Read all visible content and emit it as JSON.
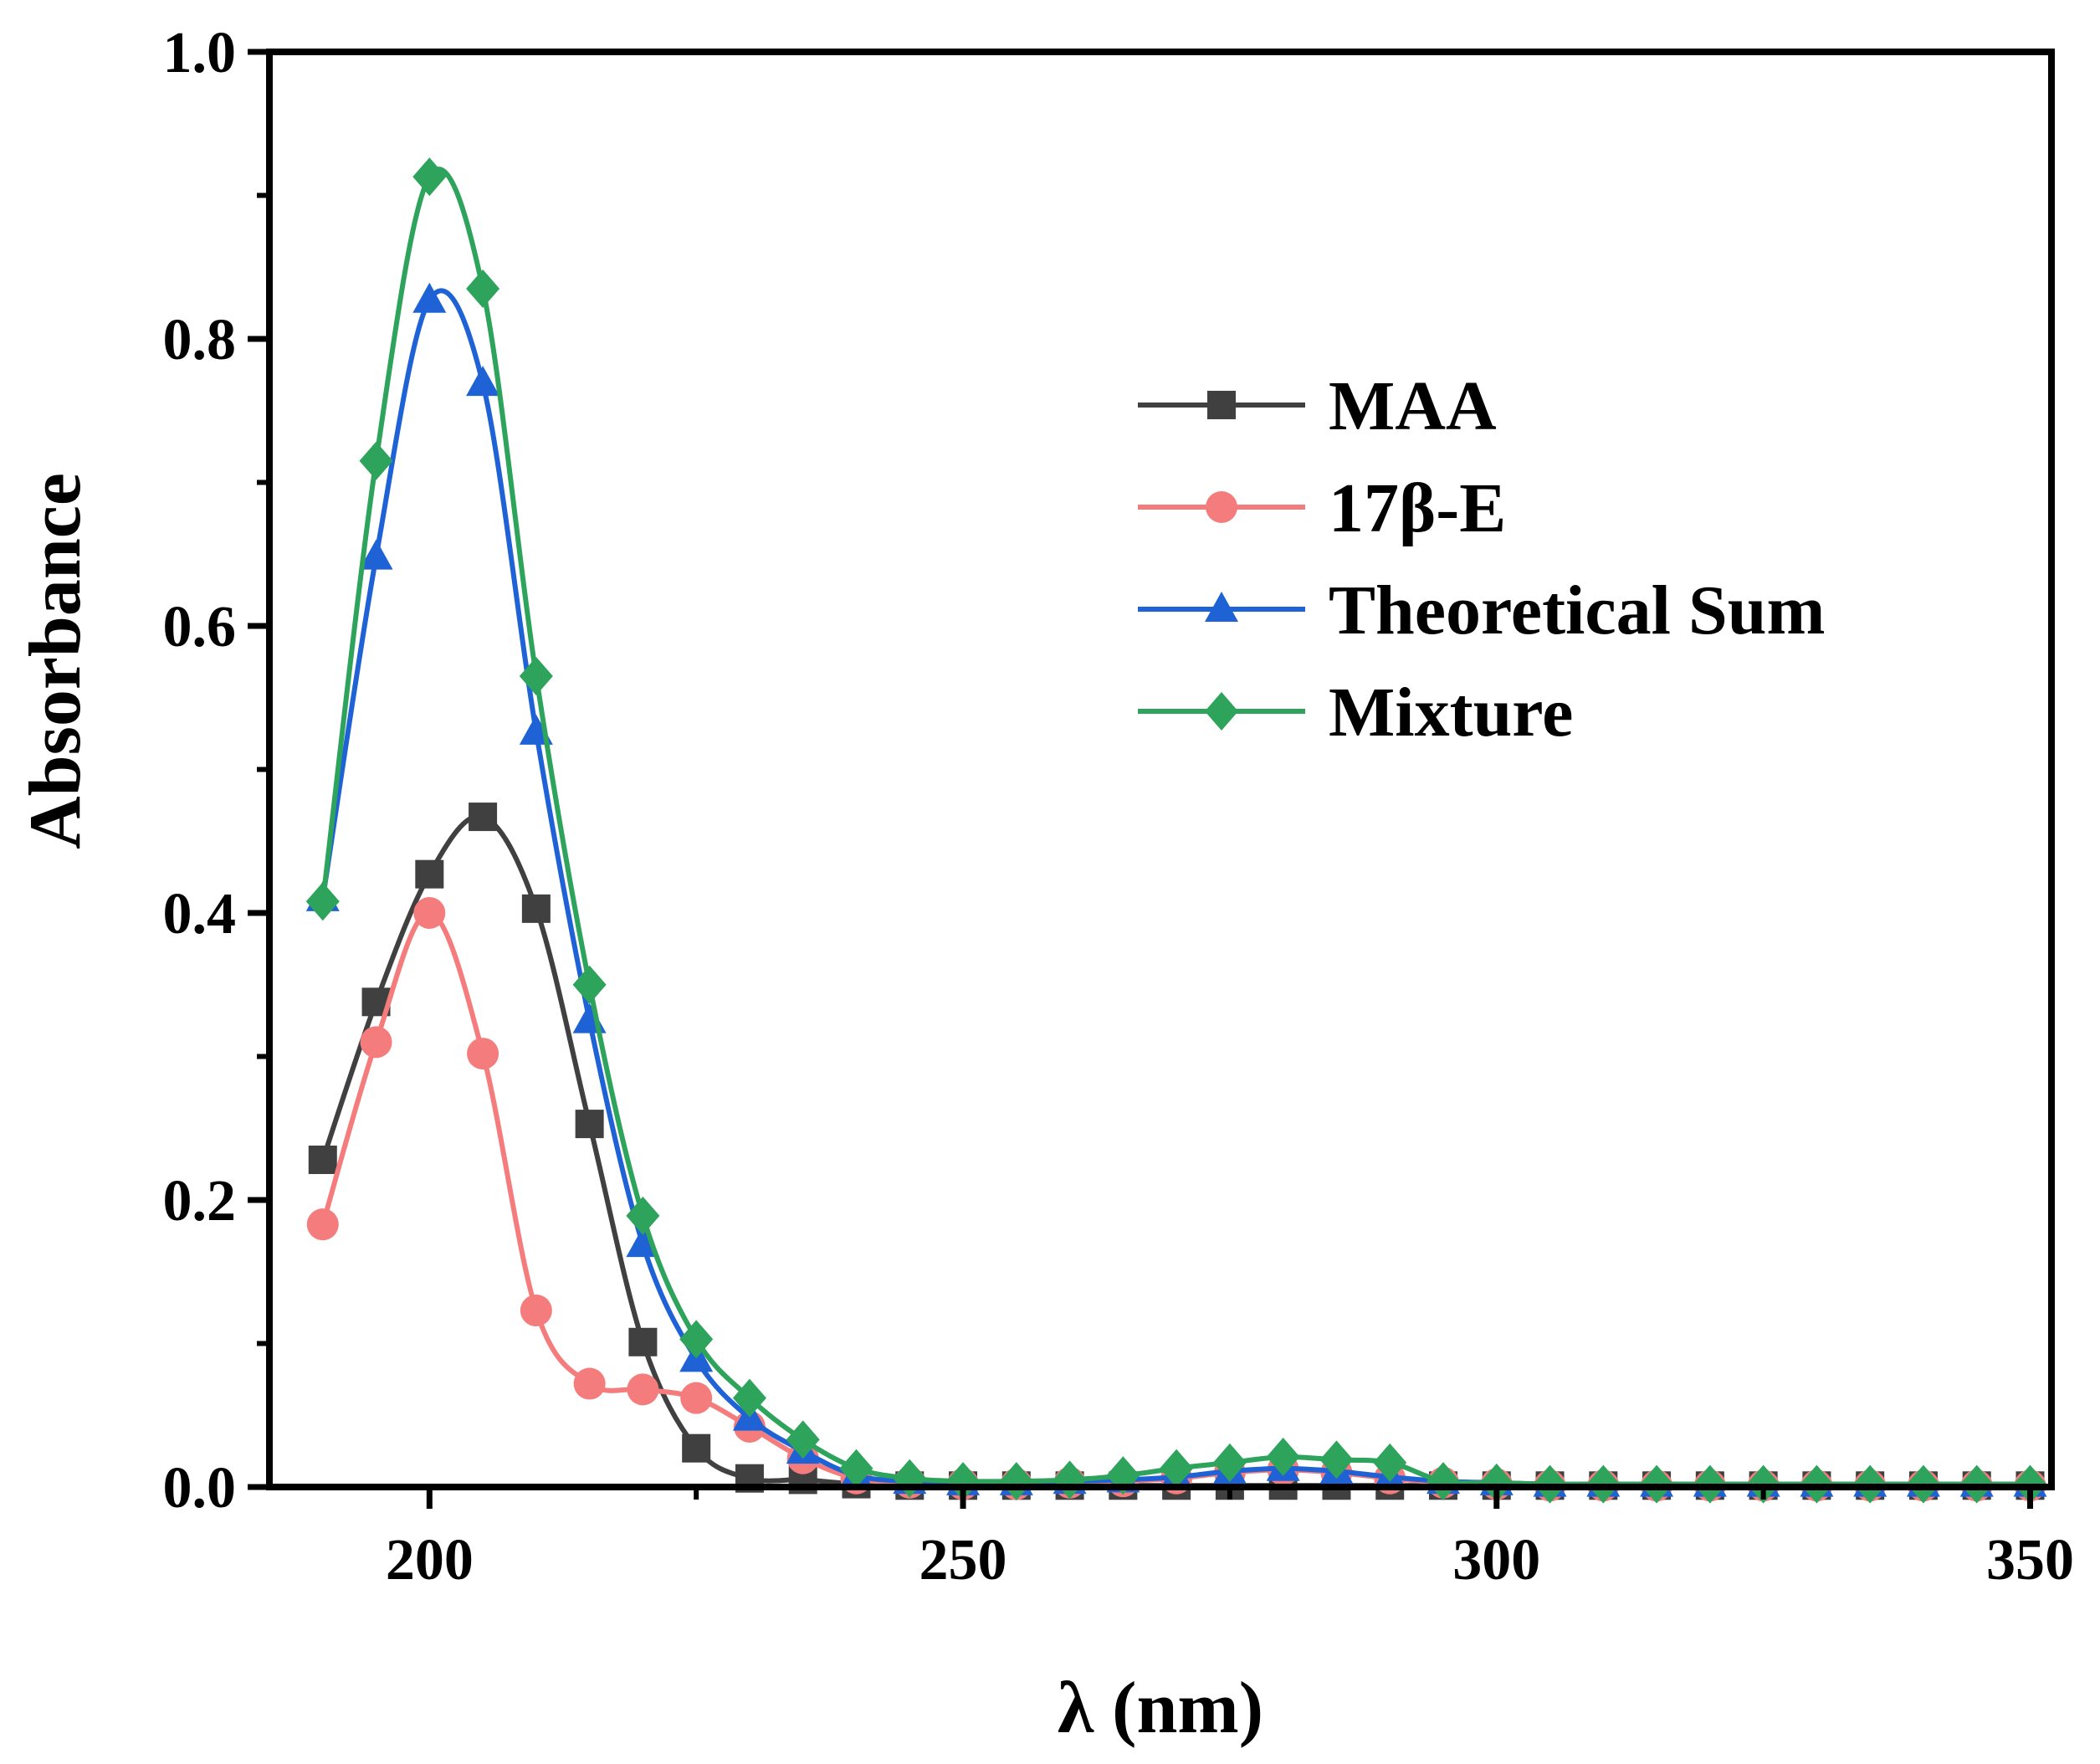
{
  "chart_data": {
    "type": "line",
    "title": "",
    "xlabel": "λ (nm)",
    "ylabel": "Absorbance",
    "xlim": [
      185,
      352
    ],
    "ylim": [
      0,
      1.0
    ],
    "xticks": [
      200,
      250,
      300,
      350
    ],
    "xtick_labels": [
      "200",
      "250",
      "300",
      "350"
    ],
    "yticks": [
      0.0,
      0.2,
      0.4,
      0.6,
      0.8,
      1.0
    ],
    "ytick_labels": [
      "0.0",
      "0.2",
      "0.4",
      "0.6",
      "0.8",
      "1.0"
    ],
    "x_minor_ticks": [
      225,
      275,
      325
    ],
    "y_minor_ticks": [
      0.1,
      0.3,
      0.5,
      0.7,
      0.9
    ],
    "grid": false,
    "legend_position": "top-right",
    "series": [
      {
        "name": "MAA",
        "color": "#404040",
        "marker": "square",
        "x": [
          190,
          195,
          200,
          205,
          210,
          215,
          220,
          225,
          230,
          235,
          240,
          245,
          250,
          255,
          260,
          265,
          270,
          275,
          280,
          285,
          290,
          295,
          300,
          305,
          310,
          315,
          320,
          325,
          330,
          335,
          340,
          345,
          350
        ],
        "y": [
          0.228,
          0.338,
          0.427,
          0.467,
          0.403,
          0.253,
          0.101,
          0.027,
          0.006,
          0.005,
          0.002,
          0.001,
          0.001,
          0.001,
          0.001,
          0.001,
          0.001,
          0.001,
          0.001,
          0.001,
          0.001,
          0.001,
          0.001,
          0.001,
          0.001,
          0.001,
          0.001,
          0.001,
          0.001,
          0.001,
          0.001,
          0.001,
          0.001
        ]
      },
      {
        "name": "17β-E",
        "color": "#f57c7c",
        "marker": "circle",
        "x": [
          190,
          195,
          200,
          205,
          210,
          215,
          220,
          225,
          230,
          235,
          240,
          245,
          250,
          255,
          260,
          265,
          270,
          275,
          280,
          285,
          290,
          295,
          300,
          305,
          310,
          315,
          320,
          325,
          330,
          335,
          340,
          345,
          350
        ],
        "y": [
          0.183,
          0.31,
          0.4,
          0.302,
          0.123,
          0.072,
          0.068,
          0.062,
          0.042,
          0.02,
          0.006,
          0.003,
          0.002,
          0.002,
          0.003,
          0.004,
          0.006,
          0.01,
          0.012,
          0.01,
          0.006,
          0.003,
          0.002,
          0.001,
          0.001,
          0.001,
          0.001,
          0.001,
          0.001,
          0.001,
          0.001,
          0.001,
          0.001
        ]
      },
      {
        "name": "Theoretical Sum",
        "color": "#1f62d6",
        "marker": "triangle",
        "x": [
          190,
          195,
          200,
          205,
          210,
          215,
          220,
          225,
          230,
          235,
          240,
          245,
          250,
          255,
          260,
          265,
          270,
          275,
          280,
          285,
          290,
          295,
          300,
          305,
          310,
          315,
          320,
          325,
          330,
          335,
          340,
          345,
          350
        ],
        "y": [
          0.41,
          0.648,
          0.827,
          0.769,
          0.526,
          0.325,
          0.169,
          0.089,
          0.048,
          0.025,
          0.008,
          0.004,
          0.003,
          0.003,
          0.004,
          0.005,
          0.007,
          0.011,
          0.013,
          0.011,
          0.007,
          0.004,
          0.003,
          0.002,
          0.002,
          0.002,
          0.002,
          0.002,
          0.002,
          0.002,
          0.002,
          0.002,
          0.002
        ]
      },
      {
        "name": "Mixture",
        "color": "#2ea35c",
        "marker": "diamond",
        "x": [
          190,
          195,
          200,
          205,
          210,
          215,
          220,
          225,
          230,
          235,
          240,
          245,
          250,
          255,
          260,
          265,
          270,
          275,
          280,
          285,
          290,
          295,
          300,
          305,
          310,
          315,
          320,
          325,
          330,
          335,
          340,
          345,
          350
        ],
        "y": [
          0.408,
          0.715,
          0.913,
          0.835,
          0.565,
          0.35,
          0.189,
          0.103,
          0.062,
          0.033,
          0.013,
          0.006,
          0.004,
          0.004,
          0.005,
          0.008,
          0.013,
          0.017,
          0.021,
          0.019,
          0.017,
          0.004,
          0.003,
          0.002,
          0.002,
          0.002,
          0.002,
          0.002,
          0.002,
          0.002,
          0.002,
          0.002,
          0.002
        ]
      }
    ]
  }
}
